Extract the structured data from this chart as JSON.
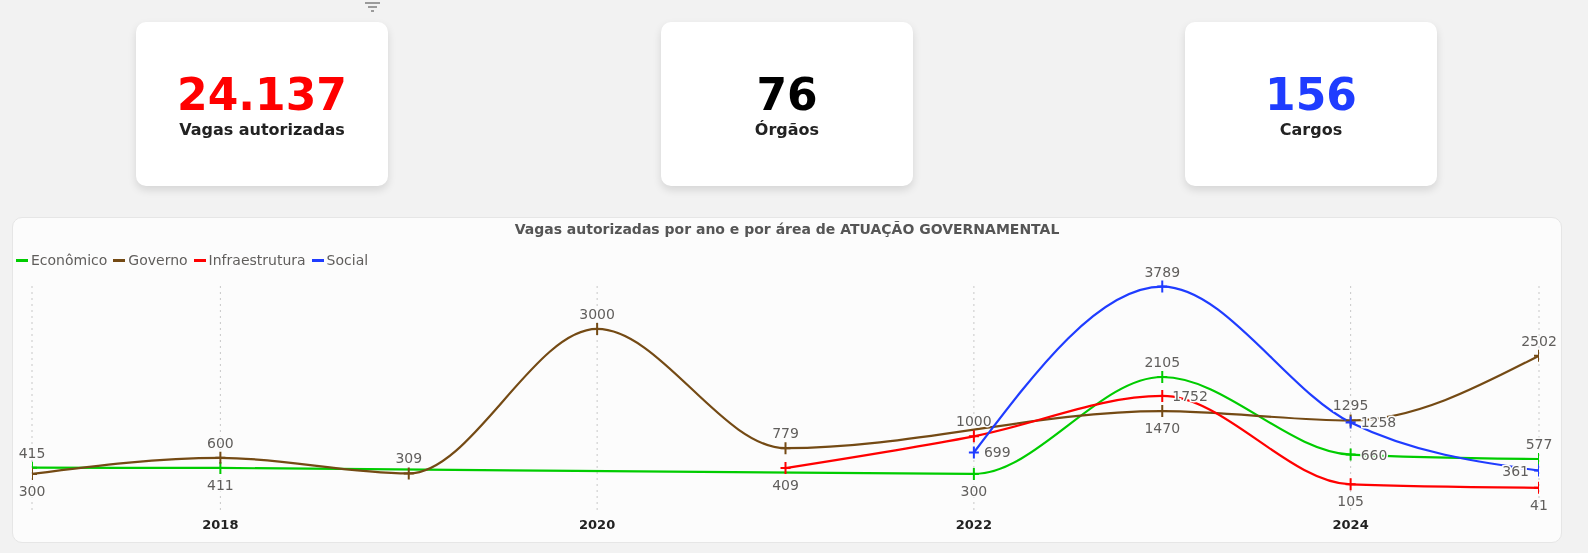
{
  "chart_data": [
    {
      "type": "other",
      "title": "Vagas autorizadas",
      "annotations": [
        "24.137"
      ],
      "color": "#ff0000"
    },
    {
      "type": "other",
      "title": "Órgãos",
      "annotations": [
        "76"
      ],
      "color": "#000000"
    },
    {
      "type": "other",
      "title": "Cargos",
      "annotations": [
        "156"
      ],
      "color": "#1f3cff"
    },
    {
      "type": "line",
      "title": "Vagas autorizadas por ano e por área de ATUAÇÃO GOVERNAMENTAL",
      "x": [
        2017,
        2018,
        2019,
        2020,
        2021,
        2022,
        2023,
        2024,
        2025
      ],
      "xlim": [
        2017,
        2025
      ],
      "xticks": [
        2018,
        2020,
        2022,
        2024
      ],
      "grid": "x",
      "legend": "top left",
      "marker": "cross",
      "line_style": "solid",
      "data_labels": true,
      "series": [
        {
          "name": "Econômico",
          "color": "#00cc00",
          "values": [
            415,
            411,
            null,
            null,
            null,
            300,
            2105,
            660,
            577
          ]
        },
        {
          "name": "Governo",
          "color": "#744a14",
          "values": [
            300,
            600,
            309,
            3000,
            779,
            null,
            1470,
            1295,
            2502
          ]
        },
        {
          "name": "Infraestrutura",
          "color": "#ff0000",
          "values": [
            null,
            null,
            null,
            null,
            409,
            1000,
            1752,
            105,
            41
          ]
        },
        {
          "name": "Social",
          "color": "#1f3cff",
          "values": [
            null,
            null,
            null,
            null,
            null,
            699,
            3789,
            1258,
            361
          ]
        }
      ]
    }
  ]
}
